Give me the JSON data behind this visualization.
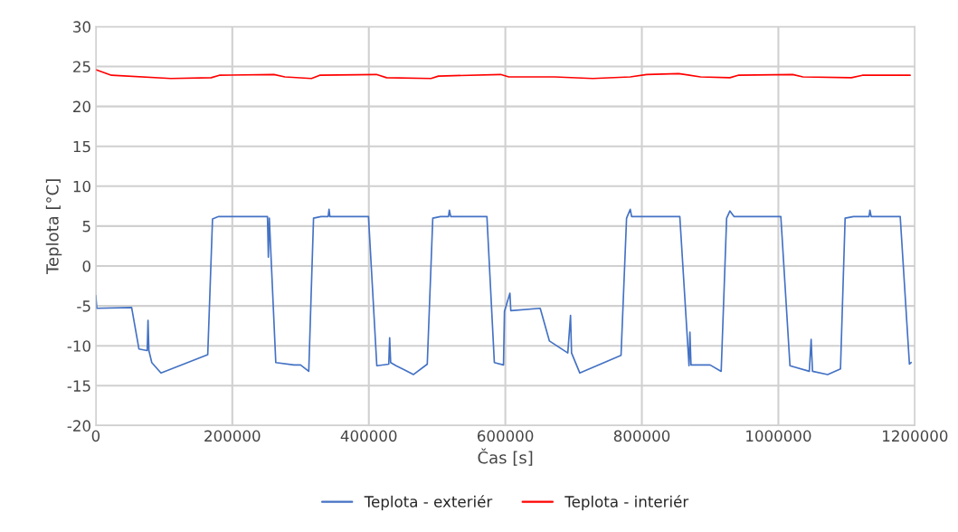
{
  "chart_data": {
    "type": "line",
    "xlabel": "Čas [s]",
    "ylabel": "Teplota [°C]",
    "xlim": [
      0,
      1200000
    ],
    "xticks": [
      0,
      200000,
      400000,
      600000,
      800000,
      1000000,
      1200000
    ],
    "ylim": [
      -20,
      30
    ],
    "yticks": [
      -20,
      -15,
      -10,
      -5,
      0,
      5,
      10,
      15,
      20,
      25,
      30
    ],
    "grid": true,
    "legend": "bottom",
    "marker": "none",
    "line_style": "solid",
    "series": [
      {
        "name": "Teplota - exteriér",
        "color": "#4472c4",
        "x": [
          0,
          1500,
          52500,
          63200,
          75300,
          76500,
          77800,
          82000,
          95500,
          164000,
          171000,
          180000,
          251500,
          252800,
          254200,
          263700,
          290500,
          300000,
          312000,
          319000,
          330000,
          340400,
          341700,
          343000,
          399500,
          411700,
          429200,
          430500,
          432000,
          440000,
          452000,
          465500,
          485600,
          493700,
          505000,
          516700,
          518000,
          520000,
          573000,
          583900,
          597300,
          598700,
          606700,
          608000,
          651100,
          664600,
          691500,
          695500,
          697000,
          709000,
          769500,
          777600,
          783000,
          785000,
          855600,
          869100,
          870400,
          872000,
          900000,
          916200,
          924200,
          929000,
          935000,
          1003600,
          1017000,
          1045300,
          1048000,
          1050000,
          1072200,
          1091000,
          1097800,
          1110000,
          1132800,
          1134100,
          1136000,
          1178500,
          1192000,
          1194600
        ],
        "values": [
          -3.7,
          -5.3,
          -5.2,
          -10.4,
          -10.6,
          -6.8,
          -10.6,
          -12.1,
          -13.4,
          -11.1,
          5.9,
          6.2,
          6.2,
          1.1,
          6.0,
          -12.1,
          -12.4,
          -12.4,
          -13.2,
          6.0,
          6.2,
          6.2,
          7.1,
          6.2,
          6.2,
          -12.5,
          -12.3,
          -9.0,
          -12.1,
          -12.5,
          -13.0,
          -13.6,
          -12.3,
          6.0,
          6.2,
          6.2,
          7.0,
          6.2,
          6.2,
          -12.1,
          -12.4,
          -5.7,
          -3.4,
          -5.6,
          -5.3,
          -9.4,
          -10.9,
          -6.2,
          -10.9,
          -13.4,
          -11.2,
          6.0,
          7.1,
          6.2,
          6.2,
          -12.5,
          -8.3,
          -12.4,
          -12.4,
          -13.2,
          6.0,
          6.9,
          6.2,
          6.2,
          -12.5,
          -13.2,
          -9.2,
          -13.2,
          -13.6,
          -12.9,
          6.0,
          6.2,
          6.2,
          7.0,
          6.2,
          6.2,
          -12.3,
          -12.1
        ]
      },
      {
        "name": "Teplota - interiér",
        "color": "#ff0000",
        "x": [
          0,
          23000,
          110000,
          169000,
          181000,
          261000,
          277000,
          316000,
          328000,
          411000,
          426000,
          491000,
          502000,
          593000,
          605000,
          672000,
          728000,
          783000,
          807000,
          854000,
          886000,
          929000,
          941000,
          1021000,
          1036000,
          1107000,
          1123000,
          1193000
        ],
        "values": [
          24.6,
          23.9,
          23.5,
          23.6,
          23.9,
          24.0,
          23.7,
          23.5,
          23.9,
          24.0,
          23.6,
          23.5,
          23.8,
          24.0,
          23.7,
          23.7,
          23.5,
          23.7,
          24.0,
          24.1,
          23.7,
          23.6,
          23.9,
          24.0,
          23.7,
          23.6,
          23.9,
          23.9
        ]
      }
    ]
  }
}
